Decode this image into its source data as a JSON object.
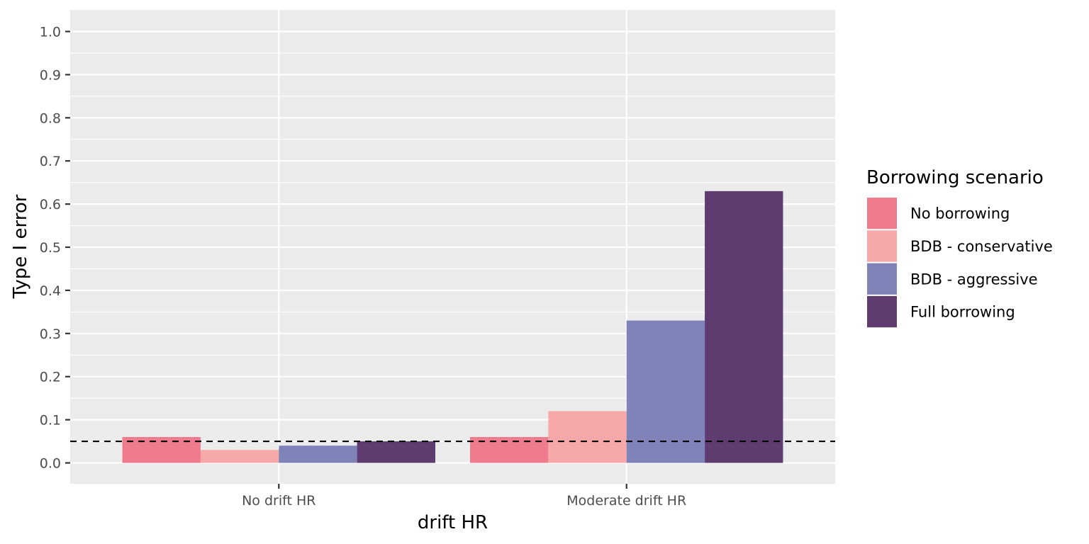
{
  "chart_data": {
    "type": "bar",
    "title": "",
    "xlabel": "drift HR",
    "ylabel": "Type I error",
    "categories": [
      "No drift HR",
      "Moderate drift HR"
    ],
    "series": [
      {
        "name": "No borrowing",
        "color": "#F07A8E",
        "values": [
          0.06,
          0.06
        ]
      },
      {
        "name": "BDB - conservative",
        "color": "#F7A8A8",
        "values": [
          0.03,
          0.12
        ]
      },
      {
        "name": "BDB - aggressive",
        "color": "#7F83B8",
        "values": [
          0.04,
          0.33
        ]
      },
      {
        "name": "Full borrowing",
        "color": "#5E3C70",
        "values": [
          0.05,
          0.63
        ]
      }
    ],
    "ylim": [
      0,
      1.0
    ],
    "yticks": [
      "0.0",
      "0.1",
      "0.2",
      "0.3",
      "0.4",
      "0.5",
      "0.6",
      "0.7",
      "0.8",
      "0.9",
      "1.0"
    ],
    "reference_line": {
      "y": 0.05,
      "style": "dashed",
      "color": "#000000"
    },
    "legend": {
      "title": "Borrowing scenario",
      "position": "right"
    },
    "grid": true,
    "panel_background": "#EBEBEB"
  }
}
